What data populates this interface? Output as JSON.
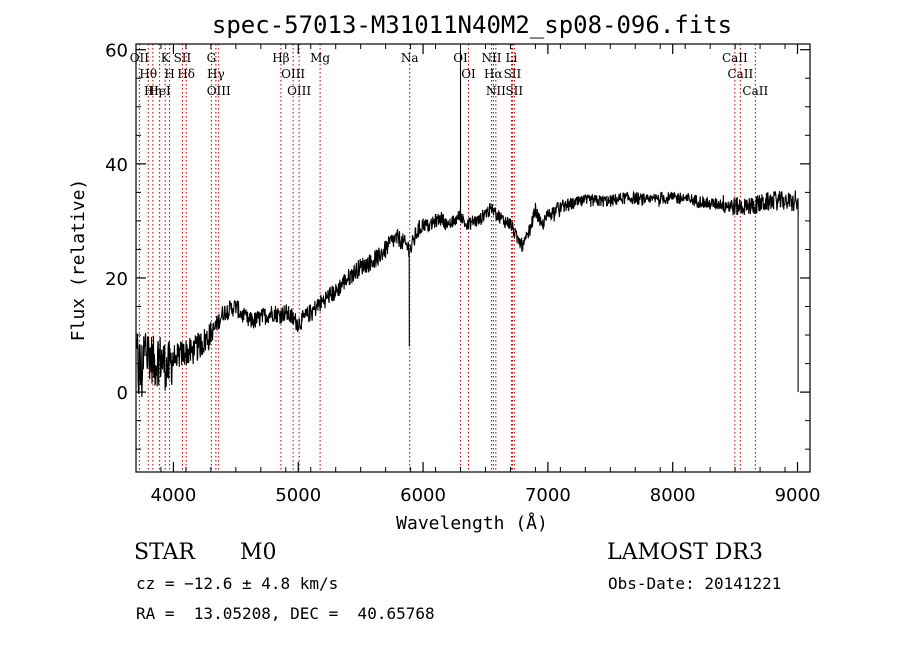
{
  "chart_data": {
    "type": "line",
    "title": "spec-57013-M31011N40M2_sp08-096.fits",
    "xlabel": "Wavelength (Å)",
    "ylabel": "Flux (relative)",
    "xlim": [
      3700,
      9100
    ],
    "ylim": [
      -14,
      61
    ],
    "xticks": [
      4000,
      5000,
      6000,
      7000,
      8000,
      9000
    ],
    "yticks": [
      0,
      20,
      40,
      60
    ],
    "series": [
      {
        "name": "flux",
        "anchors": [
          [
            3700,
            6
          ],
          [
            3720,
            4
          ],
          [
            3740,
            3
          ],
          [
            3760,
            5
          ],
          [
            3780,
            8
          ],
          [
            3800,
            7
          ],
          [
            3850,
            5
          ],
          [
            3900,
            6
          ],
          [
            3950,
            4
          ],
          [
            4000,
            6
          ],
          [
            4050,
            6.5
          ],
          [
            4100,
            7
          ],
          [
            4150,
            7
          ],
          [
            4200,
            8
          ],
          [
            4250,
            9
          ],
          [
            4300,
            10
          ],
          [
            4350,
            12
          ],
          [
            4400,
            14
          ],
          [
            4450,
            14.5
          ],
          [
            4500,
            15
          ],
          [
            4550,
            13.5
          ],
          [
            4600,
            12.5
          ],
          [
            4650,
            12.5
          ],
          [
            4700,
            13
          ],
          [
            4750,
            13.5
          ],
          [
            4800,
            14
          ],
          [
            4850,
            13.5
          ],
          [
            4900,
            14
          ],
          [
            4950,
            13
          ],
          [
            5000,
            12
          ],
          [
            5050,
            13
          ],
          [
            5100,
            14
          ],
          [
            5150,
            15
          ],
          [
            5200,
            16
          ],
          [
            5250,
            17
          ],
          [
            5300,
            17.5
          ],
          [
            5350,
            19
          ],
          [
            5400,
            20
          ],
          [
            5450,
            21
          ],
          [
            5500,
            22
          ],
          [
            5550,
            22.5
          ],
          [
            5600,
            23
          ],
          [
            5650,
            24
          ],
          [
            5700,
            25
          ],
          [
            5750,
            26.5
          ],
          [
            5800,
            27
          ],
          [
            5850,
            26
          ],
          [
            5900,
            25
          ],
          [
            5950,
            28
          ],
          [
            6000,
            29.5
          ],
          [
            6050,
            29
          ],
          [
            6100,
            30
          ],
          [
            6150,
            30.5
          ],
          [
            6200,
            29
          ],
          [
            6250,
            30
          ],
          [
            6300,
            31
          ],
          [
            6350,
            29
          ],
          [
            6400,
            30
          ],
          [
            6450,
            30
          ],
          [
            6500,
            31.5
          ],
          [
            6550,
            32
          ],
          [
            6600,
            31
          ],
          [
            6650,
            30
          ],
          [
            6700,
            29.5
          ],
          [
            6750,
            27
          ],
          [
            6800,
            25.5
          ],
          [
            6850,
            28
          ],
          [
            6900,
            32
          ],
          [
            6950,
            29
          ],
          [
            7000,
            31
          ],
          [
            7100,
            32.5
          ],
          [
            7200,
            33
          ],
          [
            7300,
            33.5
          ],
          [
            7400,
            33.5
          ],
          [
            7500,
            33.5
          ],
          [
            7600,
            34
          ],
          [
            7700,
            34
          ],
          [
            7800,
            33.5
          ],
          [
            7900,
            34
          ],
          [
            8000,
            34
          ],
          [
            8100,
            34
          ],
          [
            8200,
            33.5
          ],
          [
            8300,
            33
          ],
          [
            8400,
            33
          ],
          [
            8500,
            32.5
          ],
          [
            8600,
            32.5
          ],
          [
            8700,
            33
          ],
          [
            8800,
            33.5
          ],
          [
            8900,
            33.5
          ],
          [
            9000,
            33
          ]
        ],
        "features": [
          {
            "at": 5890,
            "value": 8
          },
          {
            "at": 6300,
            "value": 60
          },
          {
            "at": 9005,
            "value": 0
          }
        ]
      }
    ],
    "lines": [
      {
        "wave": 3727,
        "label": "OII"
      },
      {
        "wave": 3798,
        "label": "Hθ"
      },
      {
        "wave": 3835,
        "label": "Hη"
      },
      {
        "wave": 3889,
        "label": "HeI"
      },
      {
        "wave": 3934,
        "label": "K"
      },
      {
        "wave": 3969,
        "label": "H"
      },
      {
        "wave": 4072,
        "label": "SII"
      },
      {
        "wave": 4102,
        "label": "Hδ"
      },
      {
        "wave": 4304,
        "label": "G"
      },
      {
        "wave": 4340,
        "label": "Hγ"
      },
      {
        "wave": 4363,
        "label": "OIII"
      },
      {
        "wave": 4861,
        "label": "Hβ"
      },
      {
        "wave": 4959,
        "label": "OIII"
      },
      {
        "wave": 5007,
        "label": "OIII"
      },
      {
        "wave": 5175,
        "label": "Mg"
      },
      {
        "wave": 5893,
        "label": "Na"
      },
      {
        "wave": 6300,
        "label": "OI"
      },
      {
        "wave": 6364,
        "label": "OI"
      },
      {
        "wave": 6548,
        "label": "NII"
      },
      {
        "wave": 6563,
        "label": "Hα"
      },
      {
        "wave": 6583,
        "label": "NII"
      },
      {
        "wave": 6708,
        "label": "Li"
      },
      {
        "wave": 6716,
        "label": "SII"
      },
      {
        "wave": 6731,
        "label": "SII"
      },
      {
        "wave": 8498,
        "label": "CaII"
      },
      {
        "wave": 8542,
        "label": "CaII"
      },
      {
        "wave": 8662,
        "label": "CaII"
      }
    ]
  },
  "info": {
    "class": "STAR",
    "subclass": "M0",
    "survey": "LAMOST DR3",
    "cz": "cz = −12.6 ± 4.8 km/s",
    "obs_date": "Obs-Date: 20141221",
    "coords": "RA =  13.05208, DEC =  40.65768"
  },
  "colors": {
    "spectrum": "#000000",
    "line_marker": "#b00000",
    "axes": "#000000"
  }
}
